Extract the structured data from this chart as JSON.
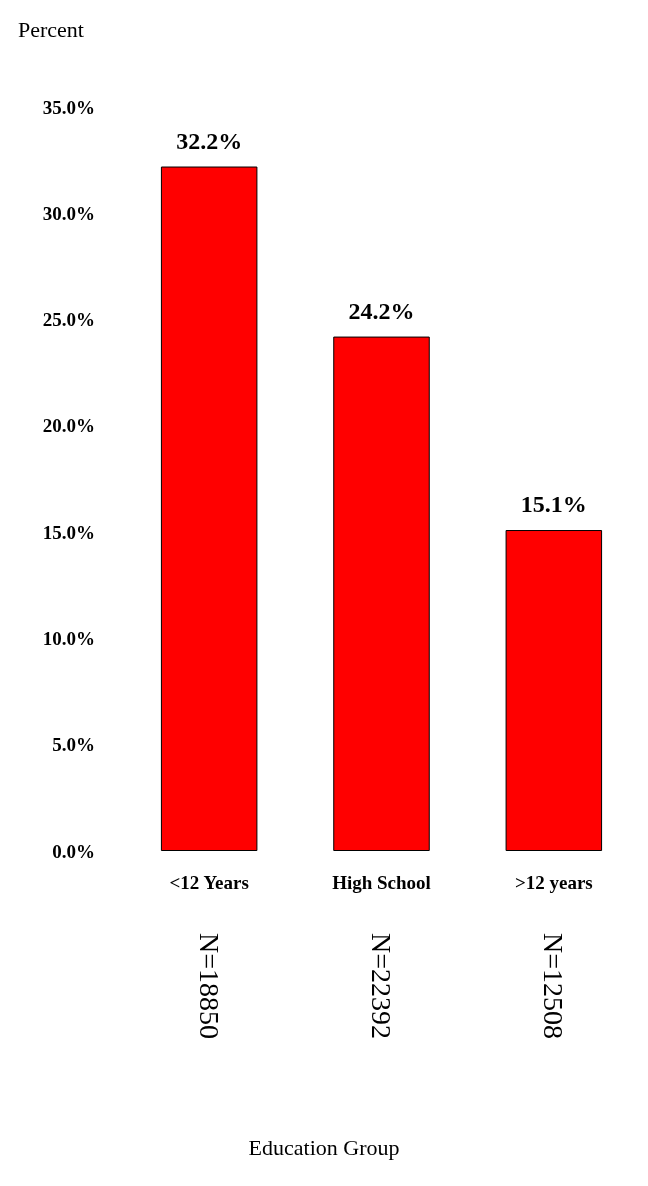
{
  "chart_data": {
    "type": "bar",
    "ylabel": "Percent",
    "categories": [
      "<12 Years",
      "High School",
      ">12 years"
    ],
    "values": [
      32.2,
      24.2,
      15.1
    ],
    "color": "#ff0000",
    "value_labels": [
      "32.2%",
      "24.2%",
      "15.1%"
    ],
    "ylim": [
      0,
      35
    ],
    "yticks": [
      {
        "value": 0,
        "label": "0.0%"
      },
      {
        "value": 5,
        "label": "5.0%"
      },
      {
        "value": 10,
        "label": "10.0%"
      },
      {
        "value": 15,
        "label": "15.0%"
      },
      {
        "value": 20,
        "label": "20.0%"
      },
      {
        "value": 25,
        "label": "25.0%"
      },
      {
        "value": 30,
        "label": "30.0%"
      },
      {
        "value": 35,
        "label": "35.0%"
      }
    ],
    "annotations": [
      "N=18850",
      "N=22392",
      "N=12508",
      "Education Group"
    ],
    "grid": false
  }
}
